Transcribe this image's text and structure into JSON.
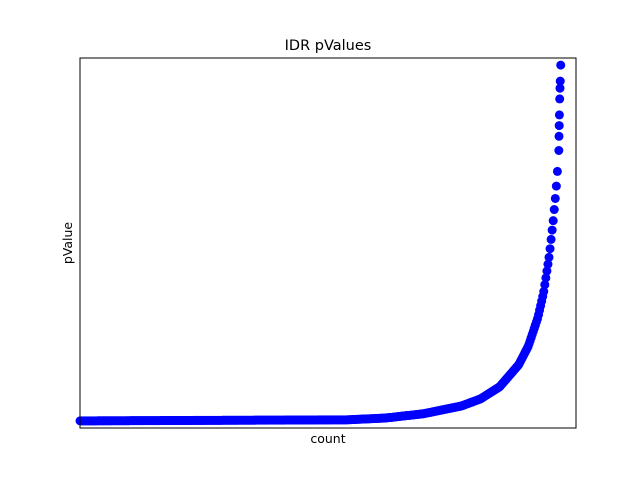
{
  "chart_data": {
    "type": "scatter",
    "title": "IDR pValues",
    "xlabel": "count",
    "ylabel": "pValue",
    "x_ticks_shown": false,
    "y_ticks_shown": false,
    "grid": false,
    "legend": "none",
    "marker_color": "#0000ff",
    "marker": "circle",
    "xlim": [
      0,
      26000
    ],
    "ylim": [
      -20,
      1020
    ],
    "curve_points": [
      {
        "x": 0,
        "y": 0
      },
      {
        "x": 14000,
        "y": 3
      },
      {
        "x": 16000,
        "y": 8
      },
      {
        "x": 18000,
        "y": 20
      },
      {
        "x": 20000,
        "y": 42
      },
      {
        "x": 21000,
        "y": 62
      },
      {
        "x": 22000,
        "y": 96
      },
      {
        "x": 23000,
        "y": 158
      },
      {
        "x": 23500,
        "y": 210
      },
      {
        "x": 24000,
        "y": 290
      },
      {
        "x": 24300,
        "y": 360
      },
      {
        "x": 24600,
        "y": 465
      },
      {
        "x": 24800,
        "y": 560
      },
      {
        "x": 24950,
        "y": 645
      },
      {
        "x": 25050,
        "y": 720
      }
    ],
    "outlier_points": [
      {
        "x": 25100,
        "y": 760
      },
      {
        "x": 25110,
        "y": 800
      },
      {
        "x": 25120,
        "y": 830
      },
      {
        "x": 25130,
        "y": 860
      },
      {
        "x": 25145,
        "y": 905
      },
      {
        "x": 25160,
        "y": 935
      },
      {
        "x": 25175,
        "y": 955
      },
      {
        "x": 25200,
        "y": 1000
      }
    ]
  }
}
